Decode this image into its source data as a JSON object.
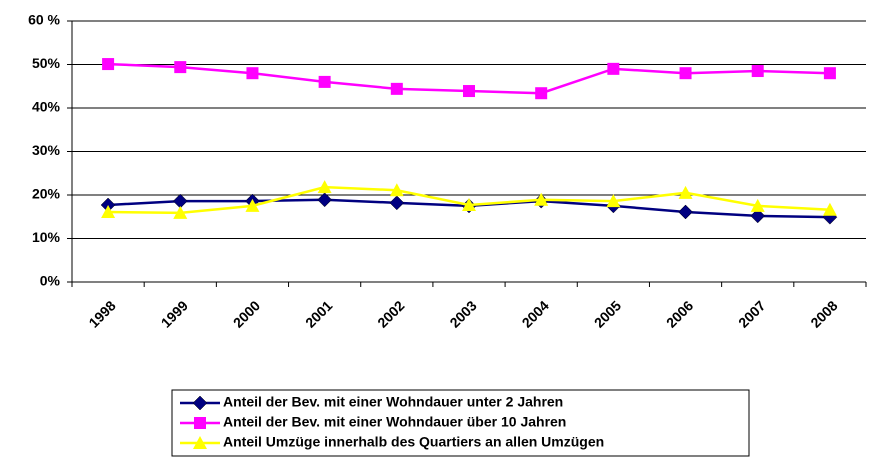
{
  "chart_data": {
    "type": "line",
    "categories": [
      "1998",
      "1999",
      "2000",
      "2001",
      "2002",
      "2003",
      "2004",
      "2005",
      "2006",
      "2007",
      "2008"
    ],
    "series": [
      {
        "name": "Anteil der Bev. mit einer Wohndauer unter 2 Jahren",
        "color": "#000080",
        "marker": "diamond",
        "values": [
          17.7,
          18.6,
          18.6,
          18.9,
          18.2,
          17.5,
          18.6,
          17.5,
          16.1,
          15.2,
          14.9
        ]
      },
      {
        "name": "Anteil der Bev. mit einer Wohndauer über 10 Jahren",
        "color": "#ff00ff",
        "marker": "square",
        "values": [
          50.1,
          49.4,
          48.0,
          46.0,
          44.4,
          43.9,
          43.4,
          49.0,
          48.0,
          48.5,
          48.0
        ]
      },
      {
        "name": "Anteil Umzüge innerhalb des Quartiers an allen Umzügen",
        "color": "#ffff00",
        "marker": "triangle",
        "values": [
          16.1,
          15.9,
          17.5,
          21.8,
          21.1,
          17.7,
          18.9,
          18.6,
          20.5,
          17.5,
          16.6
        ]
      }
    ],
    "ylim": [
      0,
      60
    ],
    "yticks": [
      {
        "value": 0,
        "label": "0%"
      },
      {
        "value": 10,
        "label": "10%"
      },
      {
        "value": 20,
        "label": "20%"
      },
      {
        "value": 30,
        "label": "30%"
      },
      {
        "value": 40,
        "label": "40%"
      },
      {
        "value": 50,
        "label": "50%"
      },
      {
        "value": 60,
        "label": "60 %"
      }
    ],
    "grid": true,
    "legend": "bottom"
  }
}
